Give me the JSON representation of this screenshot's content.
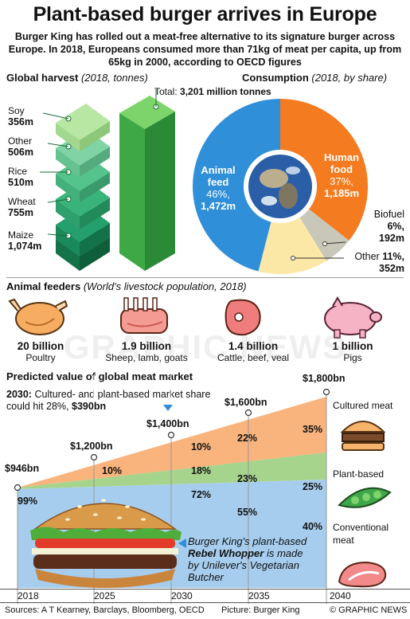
{
  "header": {
    "title": "Plant-based burger arrives in Europe",
    "subtitle": "Burger King has rolled out a meat-free alternative to its signature burger across Europe. In 2018, Europeans consumed more than 71kg of meat per capita, up from 65kg in 2000, according to OECD figures"
  },
  "harvest": {
    "title": "Global harvest",
    "note": "(2018, tonnes)",
    "total_prefix": "Total:",
    "total_value": "3,201 million tonnes",
    "items": [
      {
        "name": "Soy",
        "value": "356m"
      },
      {
        "name": "Other",
        "value": "506m"
      },
      {
        "name": "Rice",
        "value": "510m"
      },
      {
        "name": "Wheat",
        "value": "755m"
      },
      {
        "name": "Maize",
        "value": "1,074m"
      }
    ]
  },
  "consumption": {
    "title": "Consumption",
    "note": "(2018, by share)",
    "animal": {
      "line1": "Animal",
      "line2": "feed",
      "pct": "46%,",
      "val": "1,472m",
      "color": "#2f8fd8"
    },
    "human": {
      "line1": "Human",
      "line2": "food",
      "pct": "37%,",
      "val": "1,185m",
      "color": "#f47b20"
    },
    "biofuel": {
      "name": "Biofuel",
      "pct": "6%,",
      "val": "192m",
      "color": "#c9c7b9"
    },
    "other": {
      "name": "Other",
      "pct": "11%,",
      "val": "352m",
      "color": "#fbe7a6"
    }
  },
  "feeders": {
    "title": "Animal feeders",
    "note": "(World's livestock population, 2018)",
    "animals": [
      {
        "count": "20 billion",
        "name": "Poultry"
      },
      {
        "count": "1.9 billion",
        "name": "Sheep, lamb, goats"
      },
      {
        "count": "1.4 billion",
        "name": "Cattle, beef, veal"
      },
      {
        "count": "1 billion",
        "name": "Pigs"
      }
    ]
  },
  "market": {
    "title": "Predicted value of global meat market",
    "note_bold": "2030:",
    "note_text": "Cultured- and plant-based market share could hit 28%,",
    "note_value": "$390bn",
    "totals": [
      "$946bn",
      "$1,200bn",
      "$1,400bn",
      "$1,600bn",
      "$1,800bn"
    ],
    "years": [
      "2018",
      "2025",
      "2030",
      "2035",
      "2040"
    ],
    "cultured_pcts": [
      "10%",
      "22%",
      "35%"
    ],
    "plant_pcts": [
      "10%",
      "18%",
      "23%",
      "25%"
    ],
    "conventional_pcts": [
      "99%",
      "72%",
      "55%",
      "40%"
    ],
    "labels": {
      "cultured": "Cultured meat",
      "plant": "Plant-based",
      "conventional_1": "Conventional",
      "conventional_2": "meat"
    },
    "colors": {
      "cultured": "#f9b37d",
      "plant": "#a7d48c",
      "conventional": "#a6cdee"
    }
  },
  "burger_caption": {
    "line1": "Burger King's plant-based",
    "line2": "Rebel Whopper",
    "line2_rest": " is made",
    "line3": "by Unilever's Vegetarian",
    "line4": "Butcher"
  },
  "watermark": "GRAPHIC NEWS",
  "footer": {
    "sources": "Sources: A T Kearney, Barclays, Bloomberg, OECD",
    "picture": "Picture: Burger King",
    "copyright": "© GRAPHIC NEWS"
  }
}
